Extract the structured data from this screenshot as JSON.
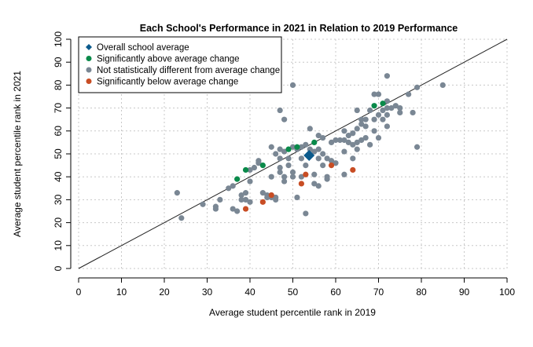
{
  "chart_data": {
    "type": "scatter",
    "title": "Each School's Performance in 2021 in Relation to 2019 Performance",
    "xlabel": "Average student percentile rank in 2019",
    "ylabel": "Average student percentile rank in 2021",
    "xlim": [
      0,
      100
    ],
    "ylim": [
      0,
      100
    ],
    "xticks": [
      "0",
      "10",
      "20",
      "30",
      "40",
      "50",
      "60",
      "70",
      "80",
      "90",
      "100"
    ],
    "yticks": [
      "0",
      "10",
      "20",
      "30",
      "40",
      "50",
      "60",
      "70",
      "80",
      "90",
      "100"
    ],
    "grid": true,
    "legend_position": "top-left",
    "reference_line": "y = x",
    "colors": {
      "average": "#0b5a8c",
      "above": "#0a8a4a",
      "neutral": "#7a8794",
      "below": "#c84d24"
    },
    "series": [
      {
        "name": "Overall school average",
        "marker": "diamond",
        "color": "#0b5a8c",
        "points": [
          [
            53.8,
            49.3
          ]
        ]
      },
      {
        "name": "Significantly above average change",
        "marker": "circle",
        "color": "#0a8a4a",
        "points": [
          [
            37,
            39
          ],
          [
            39,
            43
          ],
          [
            43,
            45
          ],
          [
            49,
            52
          ],
          [
            51,
            53
          ],
          [
            55,
            55
          ],
          [
            69,
            71
          ],
          [
            71,
            72
          ]
        ]
      },
      {
        "name": "Not statistically different from average change",
        "marker": "circle",
        "color": "#7a8794",
        "points": [
          [
            23,
            33
          ],
          [
            24,
            22
          ],
          [
            29,
            28
          ],
          [
            32,
            26
          ],
          [
            32,
            27
          ],
          [
            33,
            30
          ],
          [
            35,
            35
          ],
          [
            36,
            26
          ],
          [
            36,
            36
          ],
          [
            37,
            25
          ],
          [
            38,
            30
          ],
          [
            38,
            32
          ],
          [
            39,
            33
          ],
          [
            39,
            30
          ],
          [
            40,
            29
          ],
          [
            40,
            38
          ],
          [
            40,
            43
          ],
          [
            41,
            44
          ],
          [
            42,
            46
          ],
          [
            42,
            47
          ],
          [
            43,
            33
          ],
          [
            44,
            31
          ],
          [
            44,
            32
          ],
          [
            45,
            31
          ],
          [
            45,
            32
          ],
          [
            46,
            30
          ],
          [
            46,
            31
          ],
          [
            45,
            40
          ],
          [
            45,
            53
          ],
          [
            46,
            50
          ],
          [
            47,
            42
          ],
          [
            47,
            44
          ],
          [
            47,
            48
          ],
          [
            48,
            40
          ],
          [
            48,
            38
          ],
          [
            47,
            69
          ],
          [
            48,
            65
          ],
          [
            47,
            52
          ],
          [
            48,
            51
          ],
          [
            49,
            48
          ],
          [
            49,
            45
          ],
          [
            50,
            80
          ],
          [
            50,
            40
          ],
          [
            50,
            42
          ],
          [
            50,
            53
          ],
          [
            51,
            31
          ],
          [
            51,
            52
          ],
          [
            52,
            48
          ],
          [
            52,
            53
          ],
          [
            52,
            40
          ],
          [
            53,
            54
          ],
          [
            53,
            24
          ],
          [
            53,
            45
          ],
          [
            54,
            61
          ],
          [
            54,
            52
          ],
          [
            55,
            51
          ],
          [
            55,
            37
          ],
          [
            55,
            41
          ],
          [
            56,
            36
          ],
          [
            56,
            58
          ],
          [
            56,
            48
          ],
          [
            56,
            52
          ],
          [
            57,
            45
          ],
          [
            57,
            57
          ],
          [
            57,
            50
          ],
          [
            58,
            40
          ],
          [
            58,
            39
          ],
          [
            58,
            48
          ],
          [
            59,
            55
          ],
          [
            59,
            47
          ],
          [
            60,
            56
          ],
          [
            60,
            46
          ],
          [
            61,
            56
          ],
          [
            62,
            56
          ],
          [
            62,
            60
          ],
          [
            62,
            41
          ],
          [
            62,
            51
          ],
          [
            63,
            55
          ],
          [
            63,
            58
          ],
          [
            64,
            54
          ],
          [
            64,
            48
          ],
          [
            64,
            59
          ],
          [
            65,
            52
          ],
          [
            65,
            55
          ],
          [
            65,
            61
          ],
          [
            65,
            69
          ],
          [
            66,
            63
          ],
          [
            66,
            65
          ],
          [
            66,
            56
          ],
          [
            67,
            57
          ],
          [
            67,
            62
          ],
          [
            67,
            65
          ],
          [
            68,
            69
          ],
          [
            68,
            54
          ],
          [
            69,
            76
          ],
          [
            69,
            60
          ],
          [
            69,
            65
          ],
          [
            70,
            76
          ],
          [
            70,
            57
          ],
          [
            70,
            67
          ],
          [
            71,
            69
          ],
          [
            71,
            65
          ],
          [
            72,
            84
          ],
          [
            72,
            70
          ],
          [
            72,
            67
          ],
          [
            72,
            62
          ],
          [
            72,
            73
          ],
          [
            73,
            70
          ],
          [
            74,
            71
          ],
          [
            75,
            68
          ],
          [
            75,
            70
          ],
          [
            77,
            76
          ],
          [
            78,
            68
          ],
          [
            79,
            53
          ],
          [
            79,
            79
          ],
          [
            85,
            80
          ]
        ]
      },
      {
        "name": "Significantly below average change",
        "marker": "circle",
        "color": "#c84d24",
        "points": [
          [
            39,
            26
          ],
          [
            43,
            29
          ],
          [
            45,
            32
          ],
          [
            52,
            37
          ],
          [
            53,
            41
          ],
          [
            59,
            45
          ],
          [
            64,
            43
          ]
        ]
      }
    ]
  }
}
